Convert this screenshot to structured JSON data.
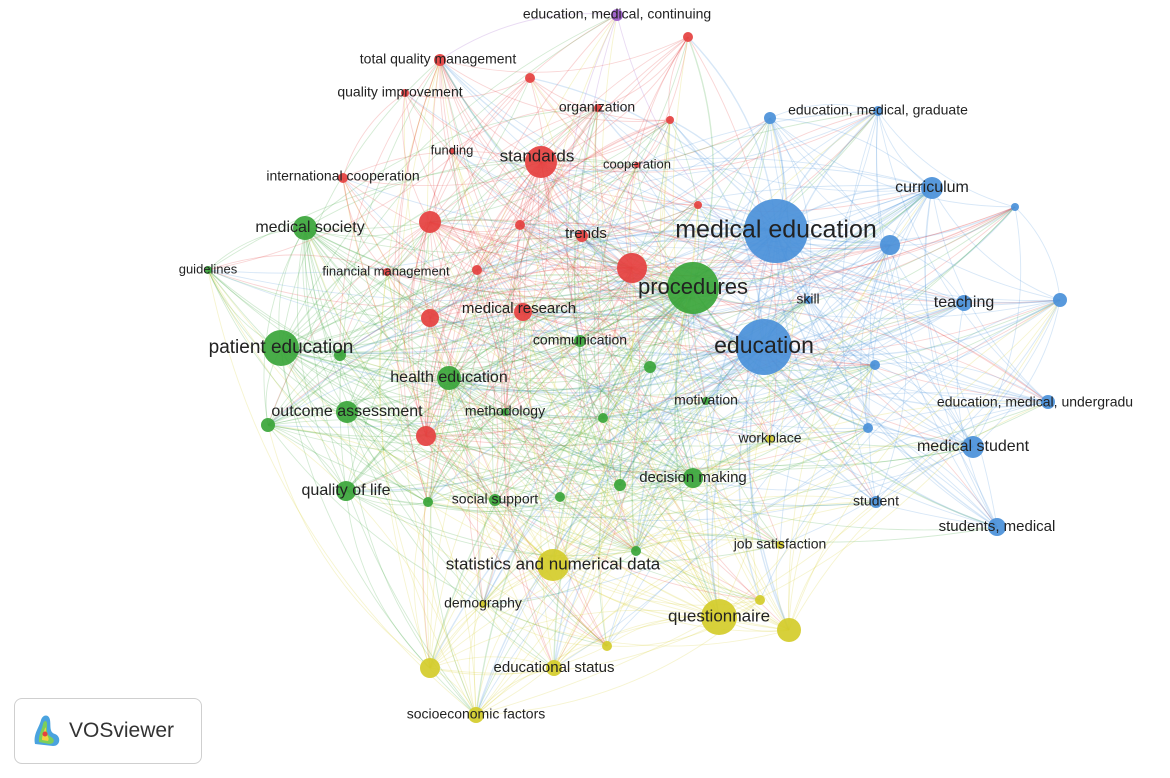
{
  "nodes": [
    {
      "label": "education, medical, continuing",
      "color": "#9b59c9"
    },
    {
      "label": "total quality management",
      "color": "#e5403f"
    },
    {
      "label": "quality improvement",
      "color": "#e5403f"
    },
    {
      "label": "organization",
      "color": "#e5403f"
    },
    {
      "label": "funding",
      "color": "#e5403f"
    },
    {
      "label": "standards",
      "color": "#e5403f"
    },
    {
      "label": "cooperation",
      "color": "#e5403f"
    },
    {
      "label": "international cooperation",
      "color": "#e5403f"
    },
    {
      "label": "trends",
      "color": "#e5403f"
    },
    {
      "label": "financial management",
      "color": "#e5403f"
    },
    {
      "label": "medical research",
      "color": "#e5403f"
    },
    {
      "label": "medical society",
      "color": "#3aa53a"
    },
    {
      "label": "guidelines",
      "color": "#3aa53a"
    },
    {
      "label": "procedures",
      "color": "#3aa53a"
    },
    {
      "label": "patient education",
      "color": "#3aa53a"
    },
    {
      "label": "health education",
      "color": "#3aa53a"
    },
    {
      "label": "outcome assessment",
      "color": "#3aa53a"
    },
    {
      "label": "methodology",
      "color": "#3aa53a"
    },
    {
      "label": "communication",
      "color": "#3aa53a"
    },
    {
      "label": "quality of life",
      "color": "#3aa53a"
    },
    {
      "label": "social support",
      "color": "#3aa53a"
    },
    {
      "label": "decision making",
      "color": "#3aa53a"
    },
    {
      "label": "motivation",
      "color": "#3aa53a"
    },
    {
      "label": "skill",
      "color": "#4a90d9"
    },
    {
      "label": "education, medical, graduate",
      "color": "#4a90d9"
    },
    {
      "label": "curriculum",
      "color": "#4a90d9"
    },
    {
      "label": "medical education",
      "color": "#4a90d9"
    },
    {
      "label": "education",
      "color": "#4a90d9"
    },
    {
      "label": "teaching",
      "color": "#4a90d9"
    },
    {
      "label": "education, medical, undergradu",
      "color": "#4a90d9"
    },
    {
      "label": "medical student",
      "color": "#4a90d9"
    },
    {
      "label": "student",
      "color": "#4a90d9"
    },
    {
      "label": "students, medical",
      "color": "#4a90d9"
    },
    {
      "label": "workplace",
      "color": "#d4cc2a"
    },
    {
      "label": "job satisfaction",
      "color": "#d4cc2a"
    },
    {
      "label": "statistics and numerical data",
      "color": "#d4cc2a"
    },
    {
      "label": "demography",
      "color": "#d4cc2a"
    },
    {
      "label": "questionnaire",
      "color": "#d4cc2a"
    },
    {
      "label": "educational status",
      "color": "#d4cc2a"
    },
    {
      "label": "socioeconomic factors",
      "color": "#d4cc2a"
    }
  ],
  "logo": {
    "text": "VOSviewer"
  }
}
